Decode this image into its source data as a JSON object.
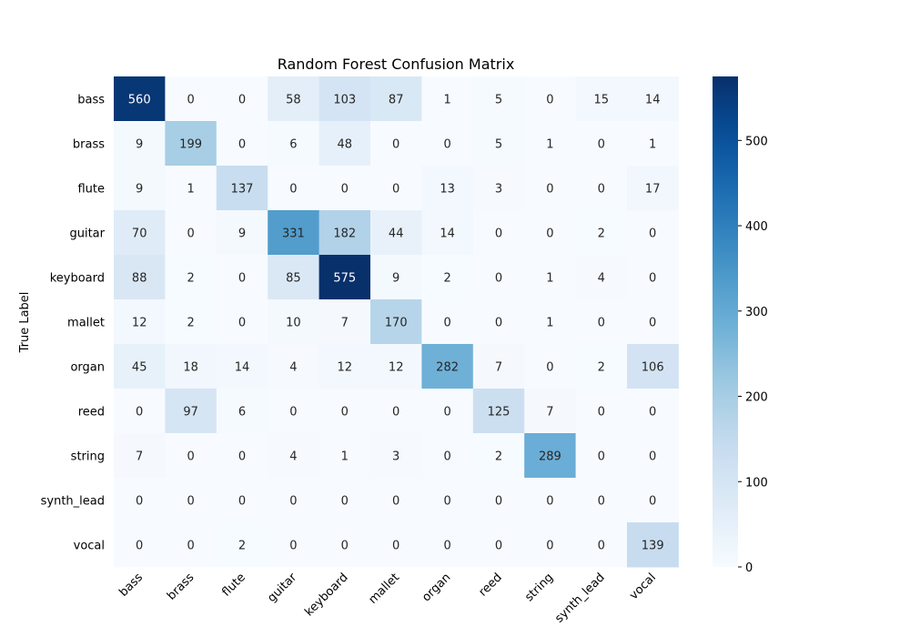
{
  "chart_data": {
    "type": "heatmap",
    "title": "Random Forest Confusion Matrix",
    "ylabel": "True Label",
    "xlabel": "",
    "x_labels": [
      "bass",
      "brass",
      "flute",
      "guitar",
      "keyboard",
      "mallet",
      "organ",
      "reed",
      "string",
      "synth_lead",
      "vocal"
    ],
    "y_labels": [
      "bass",
      "brass",
      "flute",
      "guitar",
      "keyboard",
      "mallet",
      "organ",
      "reed",
      "string",
      "synth_lead",
      "vocal"
    ],
    "matrix": [
      [
        560,
        0,
        0,
        58,
        103,
        87,
        1,
        5,
        0,
        15,
        14
      ],
      [
        9,
        199,
        0,
        6,
        48,
        0,
        0,
        5,
        1,
        0,
        1
      ],
      [
        9,
        1,
        137,
        0,
        0,
        0,
        13,
        3,
        0,
        0,
        17
      ],
      [
        70,
        0,
        9,
        331,
        182,
        44,
        14,
        0,
        0,
        2,
        0
      ],
      [
        88,
        2,
        0,
        85,
        575,
        9,
        2,
        0,
        1,
        4,
        0
      ],
      [
        12,
        2,
        0,
        10,
        7,
        170,
        0,
        0,
        1,
        0,
        0
      ],
      [
        45,
        18,
        14,
        4,
        12,
        12,
        282,
        7,
        0,
        2,
        106
      ],
      [
        0,
        97,
        6,
        0,
        0,
        0,
        0,
        125,
        7,
        0,
        0
      ],
      [
        7,
        0,
        0,
        4,
        1,
        3,
        0,
        2,
        289,
        0,
        0
      ],
      [
        0,
        0,
        0,
        0,
        0,
        0,
        0,
        0,
        0,
        0,
        0
      ],
      [
        0,
        0,
        2,
        0,
        0,
        0,
        0,
        0,
        0,
        0,
        139
      ]
    ],
    "colorbar": {
      "min": 0,
      "max": 575,
      "ticks": [
        0,
        100,
        200,
        300,
        400,
        500
      ],
      "colormap": "Blues",
      "low_color": "#f7fbff",
      "high_color": "#08306b"
    },
    "grid": false
  }
}
